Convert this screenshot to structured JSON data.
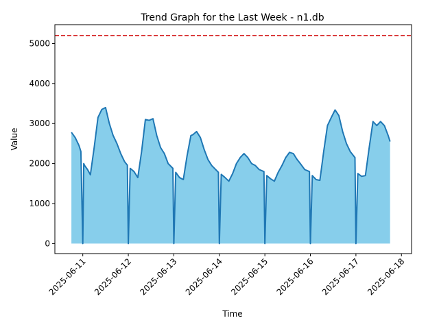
{
  "chart_data": {
    "type": "area",
    "title": "Trend Graph for the Last Week - n1.db",
    "xlabel": "Time",
    "ylabel": "Value",
    "x_ticks": [
      "2025-06-11",
      "2025-06-12",
      "2025-06-13",
      "2025-06-14",
      "2025-06-15",
      "2025-06-16",
      "2025-06-17",
      "2025-06-18"
    ],
    "y_ticks": [
      0,
      1000,
      2000,
      3000,
      4000,
      5000
    ],
    "xlim": [
      "2025-06-10T09:17",
      "2025-06-18T05:20"
    ],
    "ylim": [
      -250,
      5470
    ],
    "threshold": {
      "value": 5200,
      "color": "#d62728",
      "style": "dashed"
    },
    "fill_color": "#87ceeb",
    "line_color": "#1f77b4",
    "grid": false,
    "x": [
      "2025-06-10T18:00",
      "2025-06-10T20:00",
      "2025-06-10T22:00",
      "2025-06-10T23:00",
      "2025-06-11T00:00",
      "2025-06-11T00:30",
      "2025-06-11T01:00",
      "2025-06-11T02:30",
      "2025-06-11T04:00",
      "2025-06-11T06:00",
      "2025-06-11T08:00",
      "2025-06-11T10:00",
      "2025-06-11T12:00",
      "2025-06-11T14:00",
      "2025-06-11T16:00",
      "2025-06-11T18:00",
      "2025-06-11T20:00",
      "2025-06-11T22:00",
      "2025-06-11T23:30",
      "2025-06-12T00:00",
      "2025-06-12T01:00",
      "2025-06-12T03:00",
      "2025-06-12T05:00",
      "2025-06-12T07:00",
      "2025-06-12T09:00",
      "2025-06-12T11:00",
      "2025-06-12T13:00",
      "2025-06-12T15:00",
      "2025-06-12T17:00",
      "2025-06-12T19:00",
      "2025-06-12T21:00",
      "2025-06-12T23:30",
      "2025-06-13T00:00",
      "2025-06-13T01:00",
      "2025-06-13T03:00",
      "2025-06-13T05:00",
      "2025-06-13T07:00",
      "2025-06-13T09:00",
      "2025-06-13T10:00",
      "2025-06-13T12:00",
      "2025-06-13T14:00",
      "2025-06-13T16:00",
      "2025-06-13T18:00",
      "2025-06-13T20:00",
      "2025-06-13T23:30",
      "2025-06-14T00:00",
      "2025-06-14T01:00",
      "2025-06-14T03:00",
      "2025-06-14T05:00",
      "2025-06-14T07:00",
      "2025-06-14T09:00",
      "2025-06-14T11:00",
      "2025-06-14T13:00",
      "2025-06-14T15:00",
      "2025-06-14T17:00",
      "2025-06-14T19:00",
      "2025-06-14T21:00",
      "2025-06-14T23:30",
      "2025-06-15T00:00",
      "2025-06-15T01:00",
      "2025-06-15T03:00",
      "2025-06-15T05:00",
      "2025-06-15T07:00",
      "2025-06-15T09:00",
      "2025-06-15T11:00",
      "2025-06-15T13:00",
      "2025-06-15T15:00",
      "2025-06-15T17:00",
      "2025-06-15T19:00",
      "2025-06-15T21:00",
      "2025-06-15T23:30",
      "2025-06-16T00:00",
      "2025-06-16T01:00",
      "2025-06-16T03:00",
      "2025-06-16T05:00",
      "2025-06-16T07:00",
      "2025-06-16T09:00",
      "2025-06-16T11:00",
      "2025-06-16T13:00",
      "2025-06-16T15:00",
      "2025-06-16T17:00",
      "2025-06-16T19:00",
      "2025-06-16T21:00",
      "2025-06-16T23:30",
      "2025-06-17T00:00",
      "2025-06-17T01:00",
      "2025-06-17T03:00",
      "2025-06-17T05:00",
      "2025-06-17T07:00",
      "2025-06-17T09:00",
      "2025-06-17T11:00",
      "2025-06-17T13:00",
      "2025-06-17T15:00",
      "2025-06-17T17:00",
      "2025-06-17T18:00"
    ],
    "values": [
      2780,
      2650,
      2450,
      2300,
      0,
      2000,
      1950,
      1850,
      1720,
      2400,
      3150,
      3350,
      3400,
      3000,
      2700,
      2500,
      2250,
      2050,
      1960,
      0,
      1880,
      1800,
      1650,
      2300,
      3100,
      3080,
      3120,
      2700,
      2400,
      2250,
      2000,
      1880,
      0,
      1780,
      1650,
      1600,
      2200,
      2700,
      2720,
      2800,
      2650,
      2350,
      2100,
      1950,
      1780,
      0,
      1730,
      1650,
      1560,
      1750,
      2000,
      2150,
      2250,
      2150,
      2000,
      1950,
      1850,
      1800,
      0,
      1700,
      1620,
      1560,
      1780,
      1950,
      2150,
      2280,
      2250,
      2100,
      1980,
      1850,
      1800,
      0,
      1700,
      1600,
      1580,
      2300,
      2950,
      3150,
      3340,
      3200,
      2800,
      2500,
      2300,
      2150,
      0,
      1750,
      1680,
      1700,
      2400,
      3050,
      2950,
      3050,
      2950,
      2700,
      2550
    ]
  }
}
